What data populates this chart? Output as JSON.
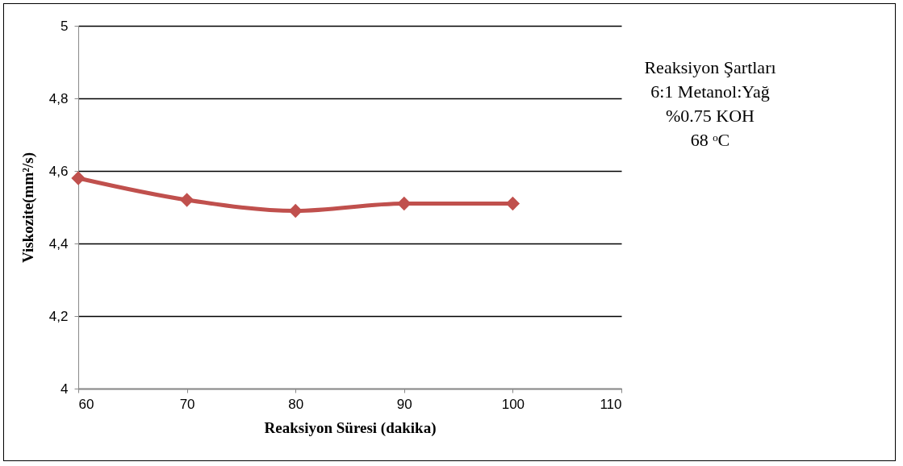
{
  "chart_data": {
    "type": "line",
    "xlabel": "Reaksiyon Süresi (dakika)",
    "ylabel": "Viskozite(mm²/s)",
    "x": [
      60,
      70,
      80,
      90,
      100
    ],
    "series": [
      {
        "color": "#c0504d",
        "values": [
          4.58,
          4.52,
          4.49,
          4.51,
          4.51
        ]
      }
    ],
    "xlim": [
      60,
      110
    ],
    "xticks": [
      60,
      70,
      80,
      90,
      100,
      110
    ],
    "ylim": [
      4,
      5
    ],
    "yticks": [
      4,
      {
        "value": 4.2,
        "label": "4,2"
      },
      {
        "value": 4.4,
        "label": "4,4"
      },
      {
        "value": 4.6,
        "label": "4,6"
      },
      {
        "value": 4.8,
        "label": "4,8"
      },
      5
    ],
    "grid": "y",
    "marker": "diamond",
    "line_style": "solid",
    "annotations": [
      "Reaksiyon Şartları",
      "6:1 Metanol:Yağ",
      "%0.75 KOH",
      "68 ᵒC"
    ]
  }
}
